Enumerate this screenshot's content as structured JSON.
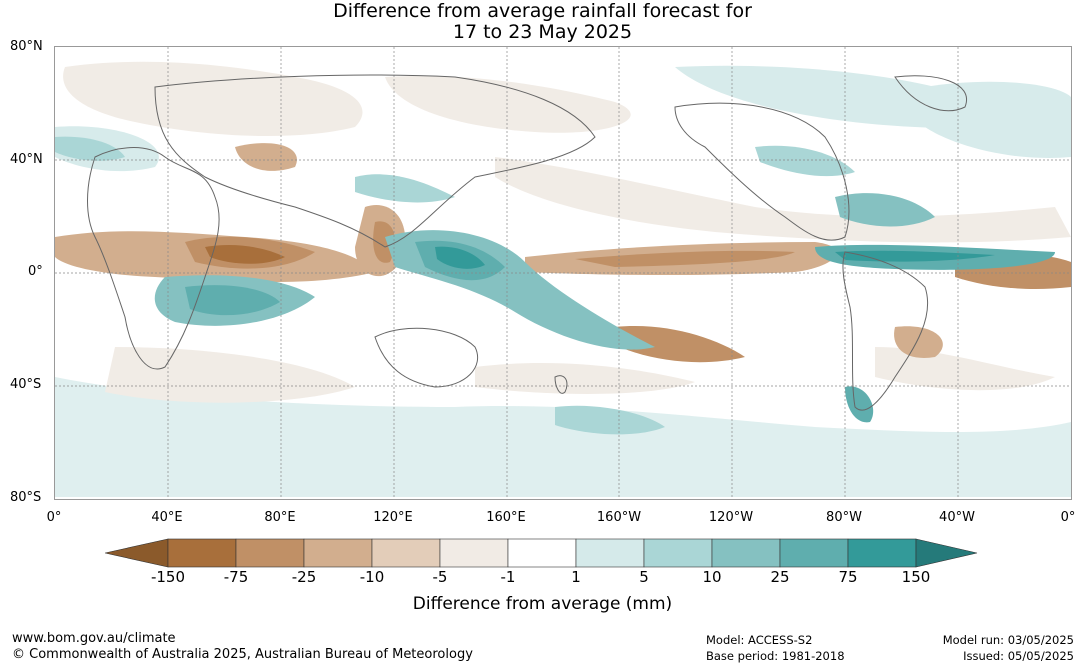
{
  "title_line1": "Difference from average rainfall forecast for",
  "title_line2": "17 to 23 May 2025",
  "lat_labels": [
    "80°N",
    "40°N",
    "0°",
    "40°S",
    "80°S"
  ],
  "lon_labels": [
    "0°",
    "40°E",
    "80°E",
    "120°E",
    "160°E",
    "160°W",
    "120°W",
    "80°W",
    "40°W",
    "0°"
  ],
  "colorbar": {
    "labels": [
      "-150",
      "-75",
      "-25",
      "-10",
      "-5",
      "-1",
      "1",
      "5",
      "10",
      "25",
      "75",
      "150"
    ],
    "colors": [
      "#8b5a2b",
      "#a86f3b",
      "#c09066",
      "#d2ae8e",
      "#e3cdb9",
      "#f1ebe5",
      "#ffffff",
      "#d5eaea",
      "#aad6d6",
      "#85c1c1",
      "#5faeae",
      "#339a99",
      "#257a7a"
    ],
    "title": "Difference from average (mm)"
  },
  "footer": {
    "url": "www.bom.gov.au/climate",
    "copyright": "© Commonwealth of Australia 2025, Australian Bureau of Meteorology",
    "model": "Model: ACCESS-S2",
    "base_period": "Base period: 1981-2018",
    "model_run": "Model run: 03/05/2025",
    "issued": "Issued: 05/05/2025"
  }
}
